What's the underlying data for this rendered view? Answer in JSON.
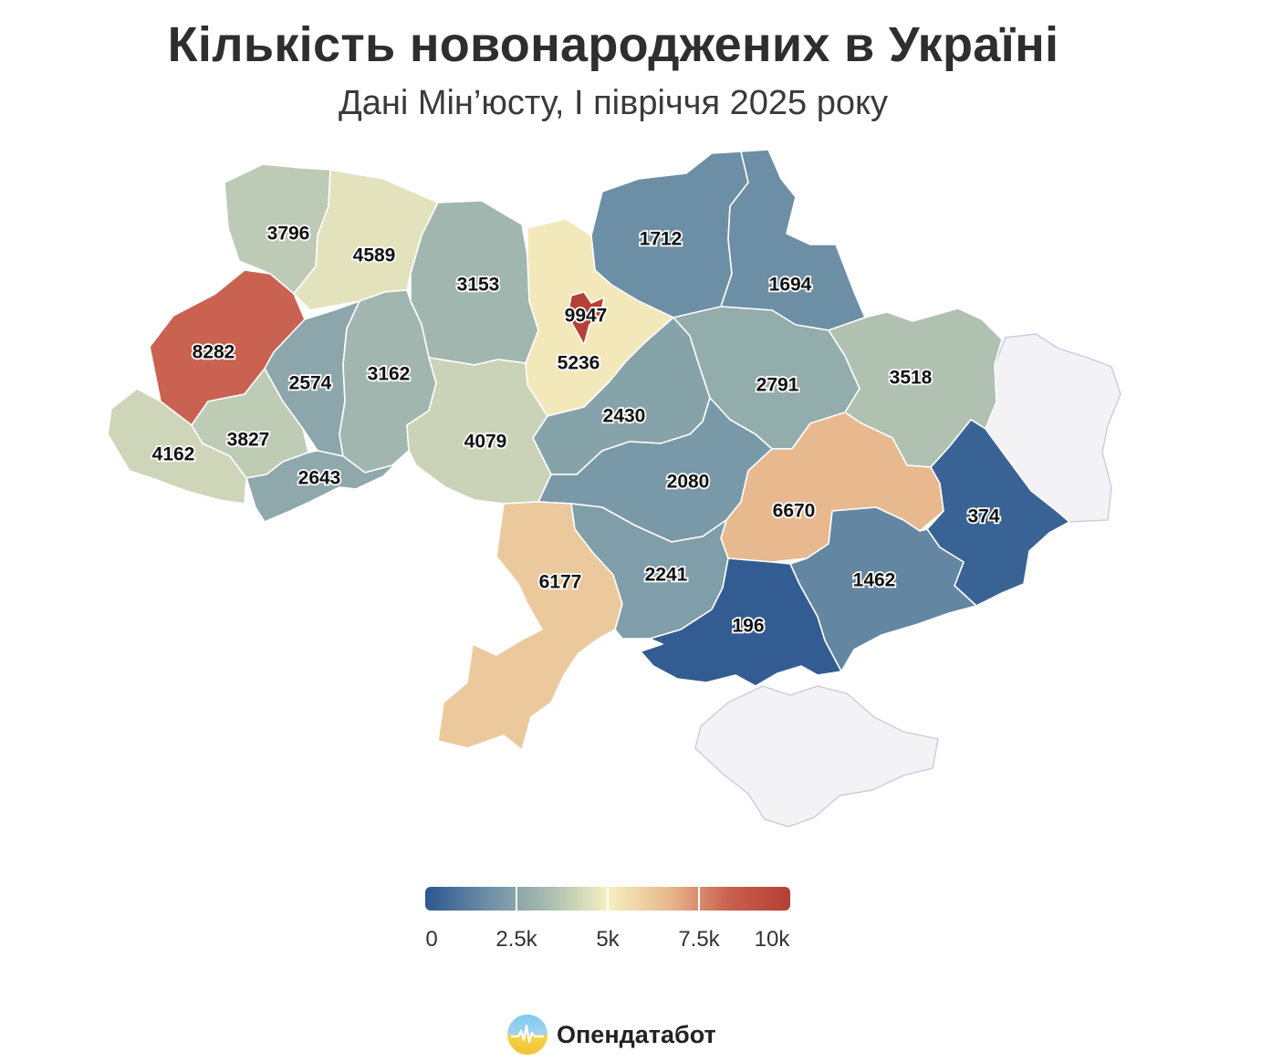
{
  "title": "Кількість новонароджених в Україні",
  "subtitle": "Дані Мін’юсту, І півріччя 2025 року",
  "colors": {
    "scale": [
      "#2c5690",
      "#6b8ea5",
      "#a7bbb0",
      "#f5f0c1",
      "#e8b98e",
      "#c95f4f",
      "#b33f35"
    ],
    "no_data": "#f3f3f6"
  },
  "regions": [
    {
      "id": "volyn",
      "value": 3796
    },
    {
      "id": "rivne",
      "value": 4589
    },
    {
      "id": "zhytomyr",
      "value": 3153
    },
    {
      "id": "kyiv-oblast",
      "value": 5236
    },
    {
      "id": "kyiv-city",
      "value": 9947
    },
    {
      "id": "chernihiv",
      "value": 1712
    },
    {
      "id": "sumy",
      "value": 1694
    },
    {
      "id": "lviv",
      "value": 8282
    },
    {
      "id": "ternopil",
      "value": 2574
    },
    {
      "id": "khmelnytskyi",
      "value": 3162
    },
    {
      "id": "vinnytsia",
      "value": 4079
    },
    {
      "id": "cherkasy",
      "value": 2430
    },
    {
      "id": "poltava",
      "value": 2791
    },
    {
      "id": "kharkiv",
      "value": 3518
    },
    {
      "id": "zakarpattia",
      "value": 4162
    },
    {
      "id": "ivano-frankivsk",
      "value": 3827
    },
    {
      "id": "chernivtsi",
      "value": 2643
    },
    {
      "id": "kirovohrad",
      "value": 2080
    },
    {
      "id": "dnipropetrovsk",
      "value": 6670
    },
    {
      "id": "donetsk",
      "value": 374
    },
    {
      "id": "luhansk",
      "value": null
    },
    {
      "id": "odesa",
      "value": 6177
    },
    {
      "id": "mykolaiv",
      "value": 2241
    },
    {
      "id": "zaporizhzhia",
      "value": 1462
    },
    {
      "id": "kherson",
      "value": 196
    },
    {
      "id": "crimea",
      "value": null
    }
  ],
  "legend": {
    "min": 0,
    "max": 10000,
    "labels": [
      "0",
      "2.5k",
      "5k",
      "7.5k",
      "10k"
    ]
  },
  "brand": {
    "name": "Опендатабот",
    "icon": "opendatabot-logo-icon"
  }
}
